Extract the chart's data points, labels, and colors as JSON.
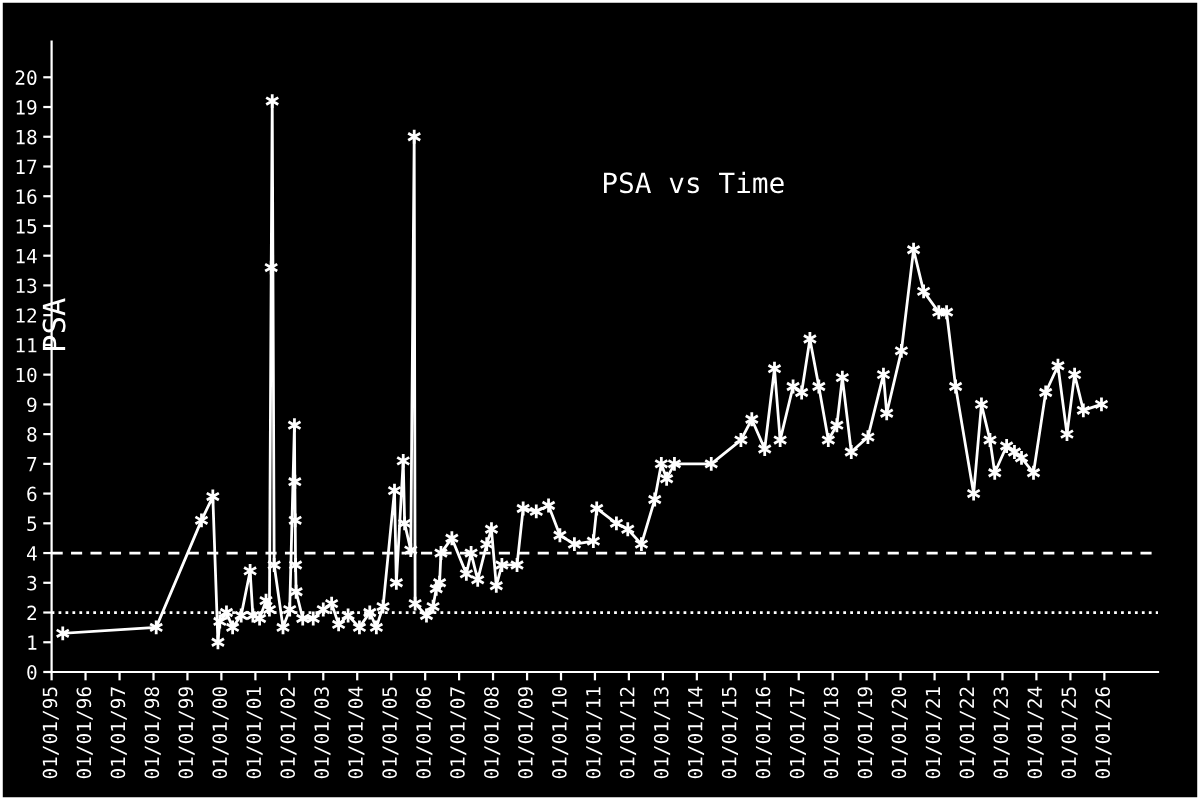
{
  "chart_data": {
    "type": "line",
    "title": "PSA vs Time",
    "ylabel": "PSA",
    "x": [
      "1995-05-01",
      "1998-01-30",
      "1999-06-01",
      "1999-10-01",
      "1999-11-25",
      "1999-12-15",
      "2000-02-25",
      "2000-05-01",
      "2000-08-01",
      "2000-11-05",
      "2000-12-05",
      "2001-02-15",
      "2001-04-25",
      "2001-06-01",
      "2001-06-20",
      "2001-07-01",
      "2001-07-22",
      "2001-10-25",
      "2002-01-05",
      "2002-02-25",
      "2002-03-01",
      "2002-03-05",
      "2002-03-09",
      "2002-03-15",
      "2002-05-25",
      "2002-09-15",
      "2003-01-01",
      "2003-04-01",
      "2003-06-15",
      "2003-09-25",
      "2004-01-25",
      "2004-05-15",
      "2004-07-25",
      "2004-10-05",
      "2005-02-05",
      "2005-02-25",
      "2005-05-10",
      "2005-05-25",
      "2005-07-30",
      "2005-09-05",
      "2005-09-15",
      "2006-01-15",
      "2006-03-27",
      "2006-04-30",
      "2006-06-05",
      "2006-06-20",
      "2006-10-15",
      "2007-03-20",
      "2007-05-10",
      "2007-07-20",
      "2007-10-25",
      "2007-12-15",
      "2008-02-05",
      "2008-04-05",
      "2008-09-15",
      "2008-11-20",
      "2009-04-10",
      "2009-08-20",
      "2009-12-20",
      "2010-05-25",
      "2010-12-15",
      "2011-01-20",
      "2011-08-20",
      "2011-12-20",
      "2012-05-15",
      "2012-10-05",
      "2012-12-15",
      "2013-02-10",
      "2013-05-05",
      "2014-06-05",
      "2015-04-20",
      "2015-08-15",
      "2016-01-01",
      "2016-04-15",
      "2016-06-15",
      "2016-11-01",
      "2017-02-01",
      "2017-05-01",
      "2017-08-05",
      "2017-11-15",
      "2018-02-15",
      "2018-04-15",
      "2018-07-20",
      "2019-01-15",
      "2019-07-01",
      "2019-08-05",
      "2020-01-10",
      "2020-05-20",
      "2020-09-05",
      "2021-02-15",
      "2021-05-10",
      "2021-08-15",
      "2022-02-25",
      "2022-05-20",
      "2022-08-20",
      "2022-10-10",
      "2023-02-15",
      "2023-05-10",
      "2023-07-25",
      "2023-12-01",
      "2024-04-10",
      "2024-08-20",
      "2024-11-25",
      "2025-02-15",
      "2025-05-20",
      "2025-12-01"
    ],
    "series": [
      {
        "color": "#ffffff",
        "values": [
          1.3,
          1.5,
          5.1,
          5.9,
          1.0,
          1.7,
          2.0,
          1.5,
          1.9,
          3.4,
          1.9,
          1.8,
          2.4,
          2.1,
          13.6,
          19.2,
          3.6,
          1.5,
          2.1,
          8.3,
          6.4,
          5.1,
          3.6,
          2.7,
          1.8,
          1.8,
          2.1,
          2.3,
          1.6,
          1.9,
          1.5,
          2.0,
          1.5,
          2.2,
          6.1,
          3.0,
          7.1,
          5.0,
          4.1,
          18.0,
          2.3,
          1.9,
          2.2,
          2.8,
          3.0,
          4.0,
          4.5,
          3.3,
          4.0,
          3.1,
          4.3,
          4.8,
          2.9,
          3.6,
          3.6,
          5.5,
          5.4,
          5.6,
          4.6,
          4.3,
          4.4,
          5.5,
          5.0,
          4.8,
          4.3,
          5.8,
          7.0,
          6.5,
          7.0,
          7.0,
          7.8,
          8.5,
          7.5,
          10.2,
          7.8,
          9.6,
          9.4,
          11.2,
          9.6,
          7.8,
          8.3,
          9.9,
          7.4,
          7.9,
          10.0,
          8.7,
          10.8,
          14.2,
          12.8,
          12.1,
          12.1,
          9.6,
          6.0,
          9.0,
          7.8,
          6.7,
          7.6,
          7.4,
          7.2,
          6.7,
          9.4,
          10.3,
          8.0,
          10.0,
          8.8,
          9.0
        ]
      }
    ],
    "marker": "cross",
    "line_style": "solid",
    "grid": false,
    "legend": false,
    "ylim": [
      0,
      21.2
    ],
    "yticks": [
      0,
      1,
      2,
      3,
      4,
      5,
      6,
      7,
      8,
      9,
      10,
      11,
      12,
      13,
      14,
      15,
      16,
      17,
      18,
      19,
      20
    ],
    "xlim": [
      "1995-01-01",
      "2027-08-01"
    ],
    "xticks": [
      {
        "value": "1995-01-01",
        "label": "01/01/95"
      },
      {
        "value": "1996-01-01",
        "label": "01/01/96"
      },
      {
        "value": "1997-01-01",
        "label": "01/01/97"
      },
      {
        "value": "1998-01-01",
        "label": "01/01/98"
      },
      {
        "value": "1999-01-01",
        "label": "01/01/99"
      },
      {
        "value": "2000-01-01",
        "label": "01/01/00"
      },
      {
        "value": "2001-01-01",
        "label": "01/01/01"
      },
      {
        "value": "2002-01-01",
        "label": "01/01/02"
      },
      {
        "value": "2003-01-01",
        "label": "01/01/03"
      },
      {
        "value": "2004-01-01",
        "label": "01/01/04"
      },
      {
        "value": "2005-01-01",
        "label": "01/01/05"
      },
      {
        "value": "2006-01-01",
        "label": "01/01/06"
      },
      {
        "value": "2007-01-01",
        "label": "01/01/07"
      },
      {
        "value": "2008-01-01",
        "label": "01/01/08"
      },
      {
        "value": "2009-01-01",
        "label": "01/01/09"
      },
      {
        "value": "2010-01-01",
        "label": "01/01/10"
      },
      {
        "value": "2011-01-01",
        "label": "01/01/11"
      },
      {
        "value": "2012-01-01",
        "label": "01/01/12"
      },
      {
        "value": "2013-01-01",
        "label": "01/01/13"
      },
      {
        "value": "2014-01-01",
        "label": "01/01/14"
      },
      {
        "value": "2015-01-01",
        "label": "01/01/15"
      },
      {
        "value": "2016-01-01",
        "label": "01/01/16"
      },
      {
        "value": "2017-01-01",
        "label": "01/01/17"
      },
      {
        "value": "2018-01-01",
        "label": "01/01/18"
      },
      {
        "value": "2019-01-01",
        "label": "01/01/19"
      },
      {
        "value": "2020-01-01",
        "label": "01/01/20"
      },
      {
        "value": "2021-01-01",
        "label": "01/01/21"
      },
      {
        "value": "2022-01-01",
        "label": "01/01/22"
      },
      {
        "value": "2023-01-01",
        "label": "01/01/23"
      },
      {
        "value": "2024-01-01",
        "label": "01/01/24"
      },
      {
        "value": "2025-01-01",
        "label": "01/01/25"
      },
      {
        "value": "2026-01-01",
        "label": "01/01/26"
      }
    ],
    "ref_lines": [
      {
        "axis": "y",
        "value": 4,
        "line_style": "dashed",
        "color": "#ffffff"
      },
      {
        "axis": "y",
        "value": 2,
        "line_style": "dotted",
        "color": "#ffffff"
      }
    ]
  }
}
